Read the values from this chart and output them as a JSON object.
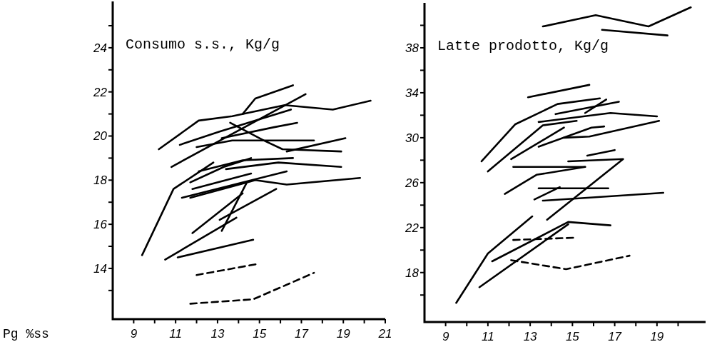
{
  "chart_data": [
    {
      "type": "line",
      "title": "Consumo s.s., Kg/g",
      "xlabel": "Pg %ss",
      "line_style": "solid",
      "xlim": [
        8,
        21
      ],
      "ylim": [
        11.7,
        26.1
      ],
      "xticks": [
        9,
        {
          "value": 10,
          "label": null
        },
        11,
        {
          "value": 12,
          "label": null
        },
        13,
        {
          "value": 14,
          "label": null
        },
        15,
        {
          "value": 16,
          "label": null
        },
        17,
        {
          "value": 18,
          "label": null
        },
        19,
        {
          "value": 20,
          "label": null
        },
        21
      ],
      "yticks": [
        {
          "value": 13,
          "label": null
        },
        14,
        {
          "value": 15,
          "label": null
        },
        16,
        {
          "value": 17,
          "label": null
        },
        18,
        {
          "value": 19,
          "label": null
        },
        20,
        {
          "value": 21,
          "label": null
        },
        22,
        {
          "value": 23,
          "label": null
        },
        24,
        {
          "value": 25,
          "label": null
        }
      ],
      "series": [
        {
          "color": "#000000",
          "x": [
            9.4,
            10.9,
            12.8
          ],
          "values": [
            14.6,
            17.6,
            18.8
          ]
        },
        {
          "color": "#000000",
          "x": [
            10.5,
            13.9
          ],
          "values": [
            14.4,
            16.3
          ]
        },
        {
          "color": "#000000",
          "x": [
            11.1,
            14.7
          ],
          "values": [
            14.5,
            15.3
          ]
        },
        {
          "color": "#000000",
          "line_style": "dashed",
          "x": [
            12.0,
            14.9
          ],
          "values": [
            13.7,
            14.2
          ]
        },
        {
          "color": "#000000",
          "line_style": "dashed",
          "x": [
            11.7,
            14.7,
            17.6
          ],
          "values": [
            12.4,
            12.6,
            13.8
          ]
        },
        {
          "color": "#000000",
          "x": [
            11.8,
            14.2
          ],
          "values": [
            15.6,
            17.4
          ]
        },
        {
          "color": "#000000",
          "x": [
            13.2,
            14.4
          ],
          "values": [
            15.7,
            17.9
          ]
        },
        {
          "color": "#000000",
          "x": [
            13.1,
            15.8
          ],
          "values": [
            16.2,
            17.6
          ]
        },
        {
          "color": "#000000",
          "x": [
            11.7,
            13.3,
            14.6
          ],
          "values": [
            17.9,
            18.6,
            19.0
          ]
        },
        {
          "color": "#000000",
          "x": [
            11.8,
            14.6
          ],
          "values": [
            17.6,
            18.3
          ]
        },
        {
          "color": "#000000",
          "x": [
            11.3,
            14.2,
            16.3
          ],
          "values": [
            17.2,
            17.9,
            18.4
          ]
        },
        {
          "color": "#000000",
          "x": [
            11.7,
            14.8,
            16.3,
            19.8
          ],
          "values": [
            17.2,
            18.0,
            17.8,
            18.1
          ]
        },
        {
          "color": "#000000",
          "x": [
            10.2,
            12.1,
            13.7,
            16.2,
            18.5,
            20.3
          ],
          "values": [
            19.4,
            20.7,
            20.9,
            21.4,
            21.2,
            21.6
          ]
        },
        {
          "color": "#000000",
          "x": [
            14.2,
            14.8,
            16.6
          ],
          "values": [
            21.0,
            21.7,
            22.3
          ]
        },
        {
          "color": "#000000",
          "x": [
            11.2,
            13.1,
            16.5
          ],
          "values": [
            19.6,
            20.2,
            21.2
          ]
        },
        {
          "color": "#000000",
          "x": [
            13.2,
            15.7,
            16.8
          ],
          "values": [
            19.9,
            20.4,
            20.6
          ]
        },
        {
          "color": "#000000",
          "x": [
            10.8,
            17.2
          ],
          "values": [
            18.6,
            21.9
          ]
        },
        {
          "color": "#000000",
          "x": [
            13.6,
            15.2,
            16.1,
            18.9
          ],
          "values": [
            20.6,
            19.8,
            19.4,
            19.3
          ]
        },
        {
          "color": "#000000",
          "x": [
            12.0,
            13.7,
            15.2,
            17.6
          ],
          "values": [
            19.5,
            19.8,
            19.8,
            19.8
          ]
        },
        {
          "color": "#000000",
          "x": [
            16.3,
            19.1
          ],
          "values": [
            19.3,
            19.9
          ]
        },
        {
          "color": "#000000",
          "x": [
            12.1,
            14.2,
            16.6
          ],
          "values": [
            18.4,
            18.9,
            19.0
          ]
        },
        {
          "color": "#000000",
          "x": [
            13.4,
            15.9,
            18.9
          ],
          "values": [
            18.5,
            18.8,
            18.6
          ]
        }
      ]
    },
    {
      "type": "line",
      "title": "Latte prodotto, Kg/g",
      "line_style": "solid",
      "xlim": [
        8,
        21.3
      ],
      "ylim": [
        13.6,
        42
      ],
      "xticks": [
        9,
        {
          "value": 10,
          "label": null
        },
        11,
        {
          "value": 12,
          "label": null
        },
        13,
        {
          "value": 14,
          "label": null
        },
        15,
        {
          "value": 16,
          "label": null
        },
        17,
        {
          "value": 18,
          "label": null
        },
        19,
        {
          "value": 20,
          "label": null
        }
      ],
      "yticks": [
        {
          "value": 16,
          "label": null
        },
        18,
        {
          "value": 20,
          "label": null
        },
        22,
        {
          "value": 24,
          "label": null
        },
        26,
        {
          "value": 28,
          "label": null
        },
        30,
        {
          "value": 32,
          "label": null
        },
        34,
        {
          "value": 36,
          "label": null
        },
        38,
        {
          "value": 40,
          "label": null
        }
      ],
      "series": [
        {
          "color": "#000000",
          "x": [
            13.6,
            16.1,
            18.6,
            20.6
          ],
          "values": [
            39.9,
            40.9,
            39.9,
            41.6
          ]
        },
        {
          "color": "#000000",
          "x": [
            16.4,
            19.5
          ],
          "values": [
            39.6,
            39.1
          ]
        },
        {
          "color": "#000000",
          "x": [
            12.9,
            15.8
          ],
          "values": [
            33.6,
            34.7
          ]
        },
        {
          "color": "#000000",
          "x": [
            10.7,
            12.3,
            14.3,
            16.3
          ],
          "values": [
            27.9,
            31.2,
            33.0,
            33.5
          ]
        },
        {
          "color": "#000000",
          "x": [
            14.2,
            17.2
          ],
          "values": [
            32.1,
            33.2
          ]
        },
        {
          "color": "#000000",
          "x": [
            13.4,
            16.8,
            19.0
          ],
          "values": [
            31.4,
            32.2,
            31.9
          ]
        },
        {
          "color": "#000000",
          "x": [
            15.6,
            16.6
          ],
          "values": [
            32.2,
            33.4
          ]
        },
        {
          "color": "#000000",
          "x": [
            11.0,
            13.6,
            15.2
          ],
          "values": [
            27.0,
            31.1,
            31.5
          ]
        },
        {
          "color": "#000000",
          "x": [
            12.1,
            14.6
          ],
          "values": [
            28.1,
            30.9
          ]
        },
        {
          "color": "#000000",
          "x": [
            13.4,
            15.9,
            16.5
          ],
          "values": [
            29.2,
            30.9,
            31.0
          ]
        },
        {
          "color": "#000000",
          "x": [
            14.6,
            15.8,
            19.1
          ],
          "values": [
            30.0,
            30.1,
            31.5
          ]
        },
        {
          "color": "#000000",
          "x": [
            15.7,
            17.0
          ],
          "values": [
            28.4,
            28.9
          ]
        },
        {
          "color": "#000000",
          "x": [
            9.5,
            11.0,
            13.1
          ],
          "values": [
            15.3,
            19.7,
            23.0
          ]
        },
        {
          "color": "#000000",
          "x": [
            10.6,
            14.8
          ],
          "values": [
            16.7,
            22.3
          ]
        },
        {
          "color": "#000000",
          "x": [
            11.2,
            14.8,
            16.8
          ],
          "values": [
            19.0,
            22.5,
            22.2
          ]
        },
        {
          "color": "#000000",
          "line_style": "dashed",
          "x": [
            12.1,
            14.7,
            17.7
          ],
          "values": [
            19.1,
            18.3,
            19.5
          ]
        },
        {
          "color": "#000000",
          "line_style": "dashed",
          "x": [
            12.2,
            15.1
          ],
          "values": [
            20.9,
            21.1
          ]
        },
        {
          "color": "#000000",
          "x": [
            13.8,
            17.4,
            14.8
          ],
          "values": [
            22.7,
            28.1,
            27.9
          ]
        },
        {
          "color": "#000000",
          "x": [
            13.6,
            19.3
          ],
          "values": [
            24.4,
            25.1
          ]
        },
        {
          "color": "#000000",
          "x": [
            13.4,
            16.7
          ],
          "values": [
            25.5,
            25.5
          ]
        },
        {
          "color": "#000000",
          "x": [
            13.2,
            14.4
          ],
          "values": [
            24.5,
            25.6
          ]
        },
        {
          "color": "#000000",
          "x": [
            11.8,
            13.3,
            15.6
          ],
          "values": [
            25.0,
            26.7,
            27.4
          ]
        },
        {
          "color": "#000000",
          "x": [
            12.2,
            15.6
          ],
          "values": [
            27.4,
            27.4
          ]
        }
      ]
    }
  ]
}
